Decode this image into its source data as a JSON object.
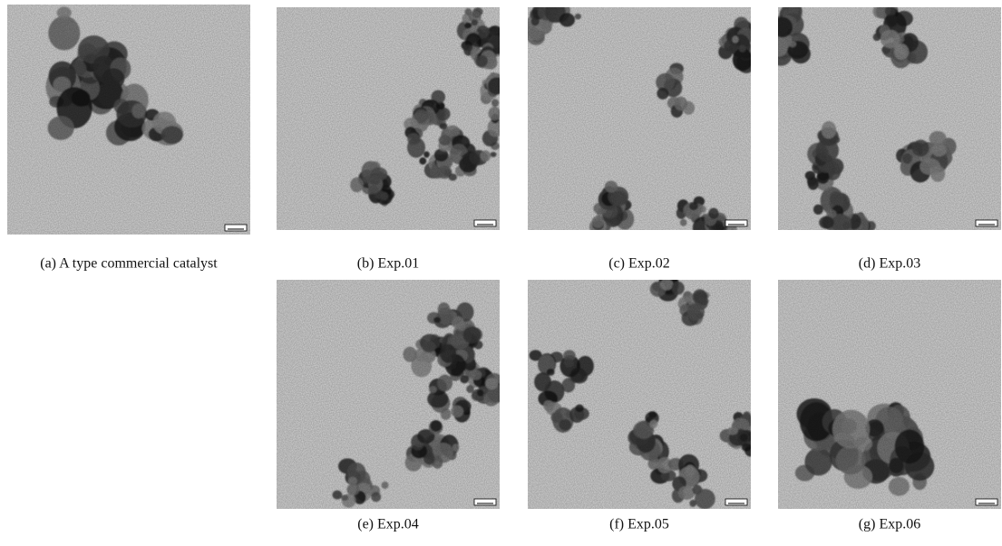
{
  "figure": {
    "panels": [
      {
        "label": "(a) A type commercial catalyst"
      },
      {
        "label": "(b)  Exp.01"
      },
      {
        "label": "(c)  Exp.02"
      },
      {
        "label": "(d)  Exp.03"
      },
      {
        "label": "(e)  Exp.04"
      },
      {
        "label": "(f)  Exp.05"
      },
      {
        "label": "(g)  Exp.06"
      }
    ]
  }
}
